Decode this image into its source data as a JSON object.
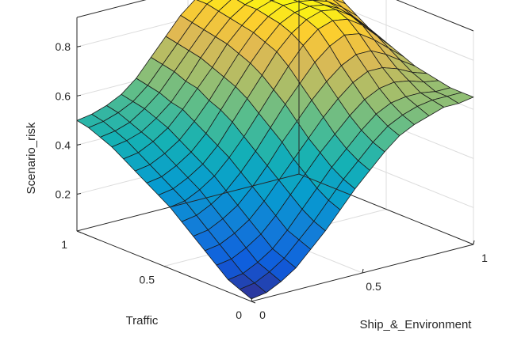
{
  "chart_data": {
    "type": "surface",
    "title": "",
    "xlabel": "Ship_&_Environment",
    "ylabel": "Traffic",
    "zlabel": "Scenario_risk",
    "xlim": [
      0,
      1
    ],
    "ylim": [
      0,
      1
    ],
    "zlim": [
      0.05,
      0.92
    ],
    "x_ticks": [
      "0",
      "0.5",
      "1"
    ],
    "y_ticks": [
      "0",
      "0.5",
      "1"
    ],
    "z_ticks": [
      "0.2",
      "0.4",
      "0.6",
      "0.8"
    ],
    "grid": true,
    "colormap": "parula",
    "x": [
      0,
      0.0667,
      0.1333,
      0.2,
      0.2667,
      0.3333,
      0.4,
      0.4667,
      0.5333,
      0.6,
      0.6667,
      0.7333,
      0.8,
      0.8667,
      0.9333,
      1
    ],
    "y": [
      0,
      0.0667,
      0.1333,
      0.2,
      0.2667,
      0.3333,
      0.4,
      0.4667,
      0.5333,
      0.6,
      0.6667,
      0.7333,
      0.8,
      0.8667,
      0.9333,
      1
    ],
    "z": [
      [
        0.06,
        0.07,
        0.1,
        0.14,
        0.2,
        0.26,
        0.33,
        0.4,
        0.46,
        0.52,
        0.57,
        0.6,
        0.62,
        0.64,
        0.64,
        0.65
      ],
      [
        0.08,
        0.09,
        0.12,
        0.16,
        0.22,
        0.28,
        0.35,
        0.42,
        0.48,
        0.54,
        0.59,
        0.62,
        0.64,
        0.65,
        0.65,
        0.65
      ],
      [
        0.1,
        0.11,
        0.14,
        0.18,
        0.24,
        0.31,
        0.38,
        0.45,
        0.51,
        0.57,
        0.62,
        0.65,
        0.66,
        0.66,
        0.65,
        0.65
      ],
      [
        0.14,
        0.15,
        0.18,
        0.22,
        0.28,
        0.35,
        0.42,
        0.49,
        0.55,
        0.61,
        0.66,
        0.69,
        0.7,
        0.69,
        0.67,
        0.66
      ],
      [
        0.18,
        0.19,
        0.22,
        0.26,
        0.32,
        0.39,
        0.46,
        0.53,
        0.6,
        0.66,
        0.71,
        0.74,
        0.74,
        0.72,
        0.69,
        0.67
      ],
      [
        0.22,
        0.23,
        0.26,
        0.3,
        0.36,
        0.43,
        0.51,
        0.58,
        0.65,
        0.71,
        0.76,
        0.79,
        0.79,
        0.76,
        0.72,
        0.68
      ],
      [
        0.26,
        0.27,
        0.3,
        0.34,
        0.4,
        0.47,
        0.55,
        0.63,
        0.7,
        0.77,
        0.82,
        0.85,
        0.84,
        0.8,
        0.75,
        0.7
      ],
      [
        0.3,
        0.31,
        0.34,
        0.38,
        0.44,
        0.51,
        0.59,
        0.67,
        0.75,
        0.82,
        0.87,
        0.89,
        0.88,
        0.84,
        0.78,
        0.72
      ],
      [
        0.33,
        0.34,
        0.37,
        0.41,
        0.47,
        0.55,
        0.63,
        0.71,
        0.79,
        0.85,
        0.89,
        0.91,
        0.9,
        0.86,
        0.8,
        0.74
      ],
      [
        0.36,
        0.37,
        0.4,
        0.44,
        0.5,
        0.58,
        0.66,
        0.74,
        0.81,
        0.87,
        0.9,
        0.91,
        0.9,
        0.87,
        0.82,
        0.76
      ],
      [
        0.39,
        0.4,
        0.43,
        0.47,
        0.53,
        0.6,
        0.68,
        0.76,
        0.83,
        0.88,
        0.91,
        0.91,
        0.9,
        0.88,
        0.84,
        0.79
      ],
      [
        0.42,
        0.43,
        0.46,
        0.5,
        0.56,
        0.63,
        0.7,
        0.78,
        0.84,
        0.89,
        0.91,
        0.91,
        0.9,
        0.89,
        0.86,
        0.82
      ],
      [
        0.45,
        0.46,
        0.48,
        0.52,
        0.57,
        0.64,
        0.72,
        0.79,
        0.85,
        0.89,
        0.91,
        0.91,
        0.91,
        0.9,
        0.88,
        0.86
      ],
      [
        0.47,
        0.48,
        0.5,
        0.54,
        0.59,
        0.66,
        0.73,
        0.8,
        0.86,
        0.9,
        0.91,
        0.91,
        0.91,
        0.91,
        0.9,
        0.89
      ],
      [
        0.49,
        0.5,
        0.52,
        0.55,
        0.6,
        0.67,
        0.74,
        0.81,
        0.87,
        0.9,
        0.91,
        0.91,
        0.91,
        0.91,
        0.91,
        0.9
      ],
      [
        0.5,
        0.51,
        0.53,
        0.56,
        0.61,
        0.68,
        0.75,
        0.82,
        0.87,
        0.9,
        0.91,
        0.91,
        0.91,
        0.91,
        0.91,
        0.91
      ]
    ]
  }
}
